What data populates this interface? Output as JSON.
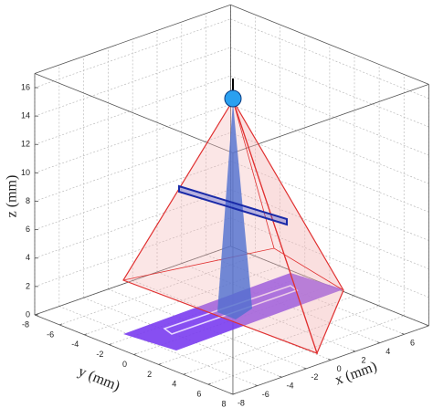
{
  "chart_data": {
    "type": "3d",
    "xlabel": "x (mm)",
    "ylabel": "y (mm)",
    "zlabel": "z (mm)",
    "xlim": [
      -8,
      8
    ],
    "ylim": [
      -8,
      8
    ],
    "zlim": [
      0,
      17
    ],
    "xticks": [
      -8,
      -6,
      -4,
      -2,
      0,
      2,
      4,
      6,
      8
    ],
    "yticks": [
      -8,
      -6,
      -4,
      -2,
      0,
      2,
      4,
      6,
      8
    ],
    "zticks": [
      0,
      2,
      4,
      6,
      8,
      10,
      12,
      14,
      16
    ],
    "grid": true
  }
}
